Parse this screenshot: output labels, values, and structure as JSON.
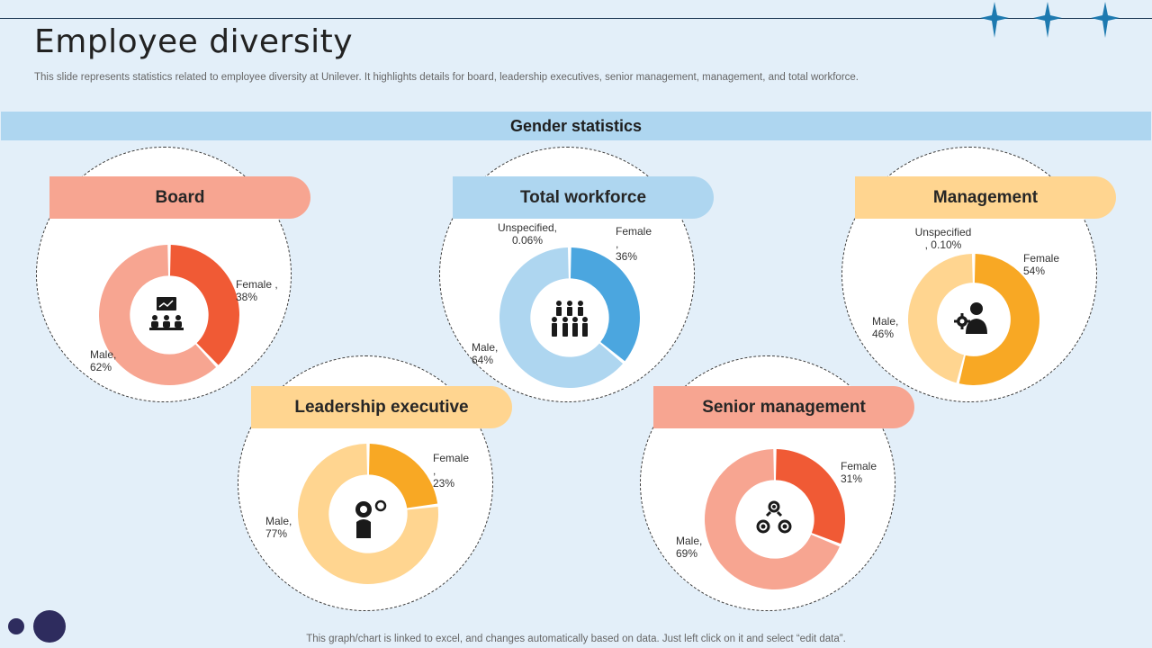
{
  "header": {
    "title": "Employee diversity",
    "subtitle": "This slide represents statistics related to employee diversity at Unilever. It highlights details for board, leadership executives, senior management, management, and total workforce."
  },
  "band_label": "Gender statistics",
  "footer": "This graph/chart is linked to excel,  and changes automatically based on data. Just left click on it and select “edit data”.",
  "colors": {
    "board": {
      "pill": "#f7a591",
      "primary": "#f05a35",
      "secondary": "#f7a591"
    },
    "workforce": {
      "pill": "#aed6f0",
      "primary": "#4ba6df",
      "secondary": "#aed6f0"
    },
    "management": {
      "pill": "#ffd590",
      "primary": "#f8a824",
      "secondary": "#ffd590"
    },
    "leadership": {
      "pill": "#ffd590",
      "primary": "#f8a824",
      "secondary": "#ffd590"
    },
    "senior": {
      "pill": "#f7a591",
      "primary": "#f05a35",
      "secondary": "#f7a591"
    }
  },
  "chart_data": [
    {
      "type": "pie",
      "title": "Board",
      "icon": "presentation-meeting-icon",
      "slices": [
        {
          "label": "Female , 38%",
          "value": 38
        },
        {
          "label": "Male,\n62%",
          "value": 62
        }
      ]
    },
    {
      "type": "pie",
      "title": "Total workforce",
      "icon": "group-of-people-icon",
      "slices": [
        {
          "label": "Female ,\n36%",
          "value": 36
        },
        {
          "label": "Male,\n64%",
          "value": 64
        },
        {
          "label": "Unspecified,\n0.06%",
          "value": 0.06
        }
      ]
    },
    {
      "type": "pie",
      "title": "Management",
      "icon": "businessman-gear-icon",
      "slices": [
        {
          "label": "Female\n54%",
          "value": 54
        },
        {
          "label": "Male,\n46%",
          "value": 46
        },
        {
          "label": "Unspecified\n, 0.10%",
          "value": 0.1
        }
      ]
    },
    {
      "type": "pie",
      "title": "Leadership executive",
      "icon": "leader-gears-icon",
      "slices": [
        {
          "label": "Female ,\n23%",
          "value": 23
        },
        {
          "label": "Male,\n77%",
          "value": 77
        }
      ]
    },
    {
      "type": "pie",
      "title": "Senior management",
      "icon": "team-gears-icon",
      "slices": [
        {
          "label": "Female\n31%",
          "value": 31
        },
        {
          "label": "Male,\n69%",
          "value": 69
        }
      ]
    }
  ]
}
